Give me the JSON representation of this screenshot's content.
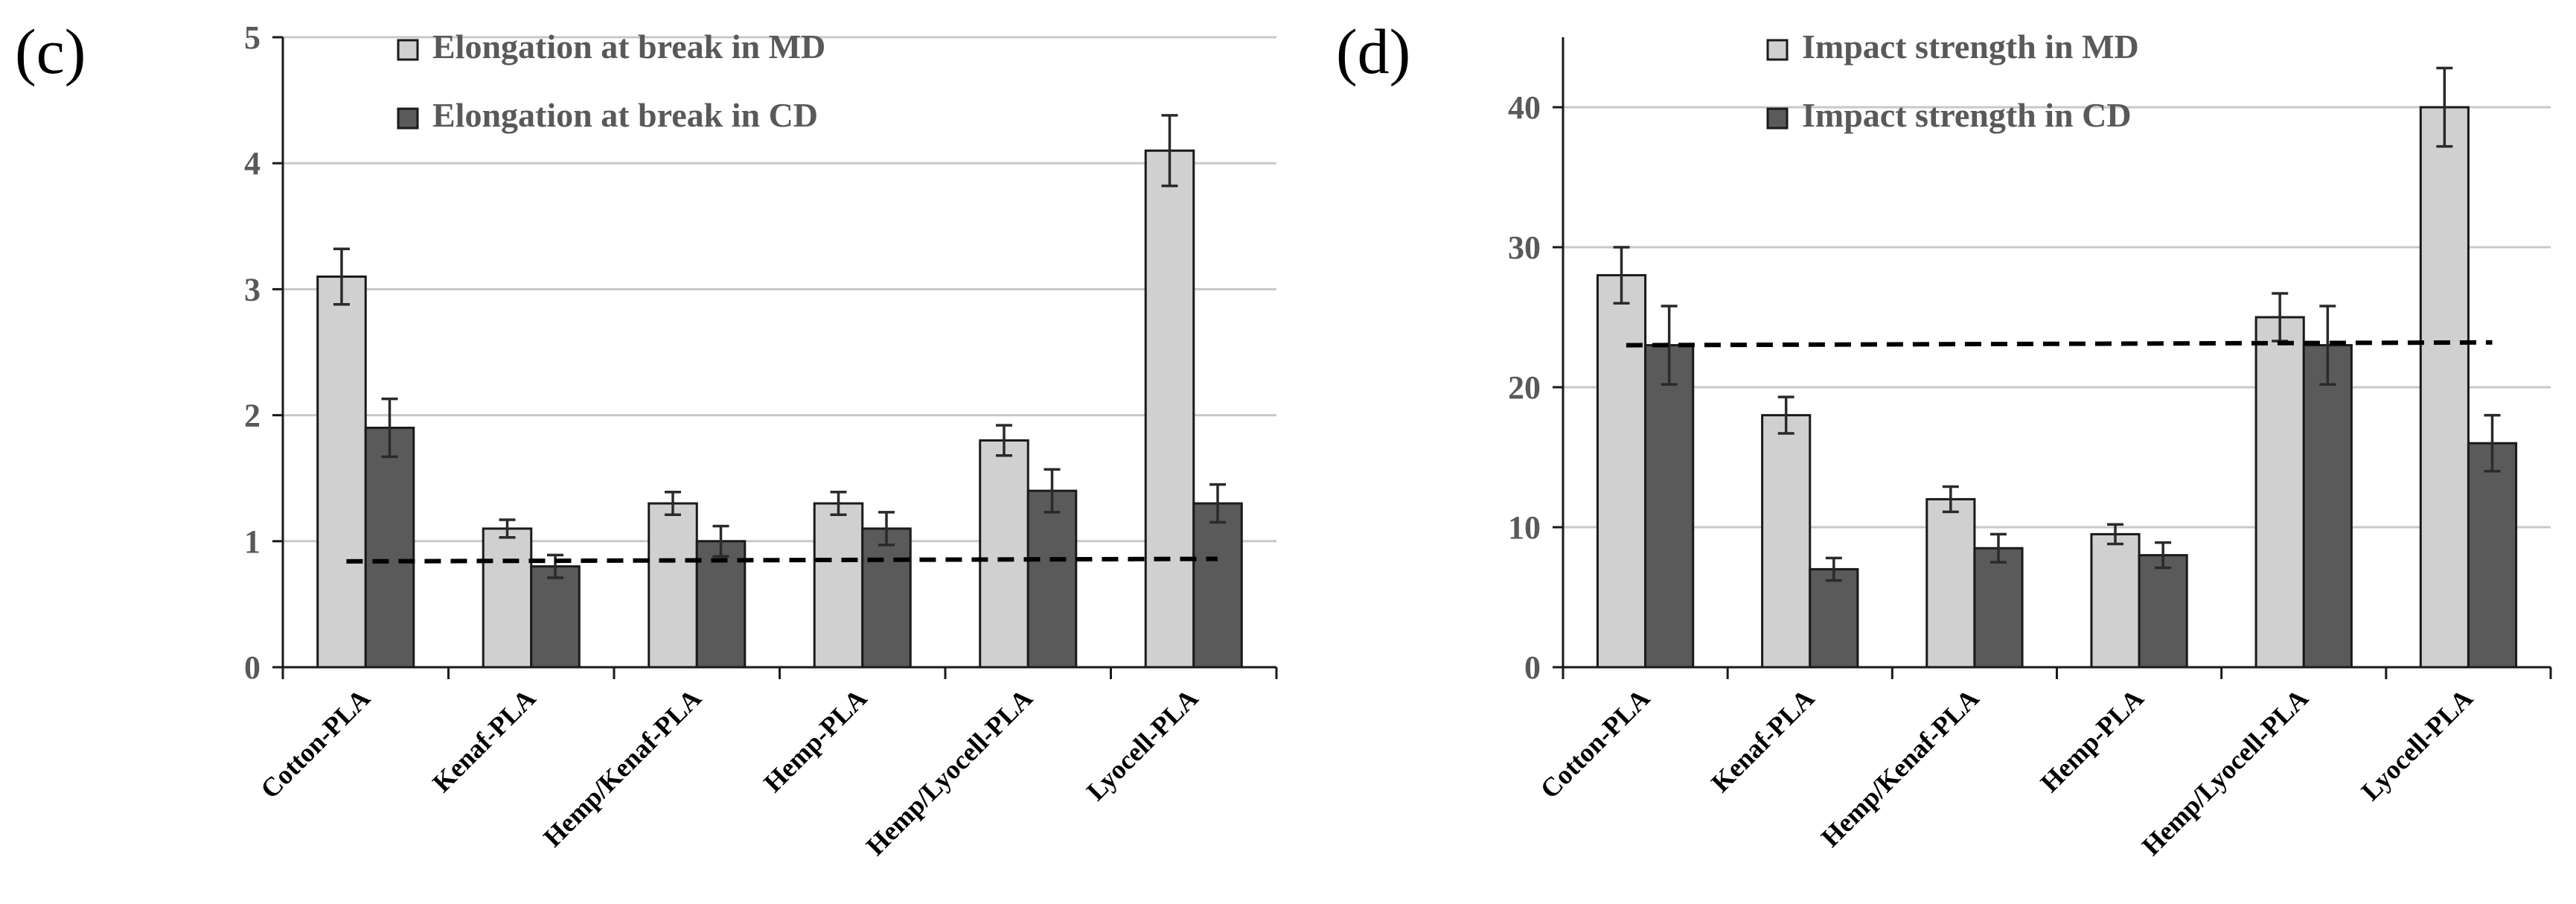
{
  "colors": {
    "md": "#d0d0d0",
    "cd": "#5a5a5a",
    "bar_stroke": "#1a1a1a",
    "grid": "#c8c8c8",
    "axis": "#1a1a1a",
    "error": "#2a2a2a",
    "dashed": "#000000"
  },
  "chart_data": [
    {
      "type": "bar",
      "panel_label": "(c)",
      "categories": [
        "Cotton-PLA",
        "Kenaf-PLA",
        "Hemp/Kenaf-PLA",
        "Hemp-PLA",
        "Hemp/Lyocell-PLA",
        "Lyocell-PLA"
      ],
      "series": [
        {
          "name": "Elongation at break in MD",
          "key": "md",
          "values": [
            3.1,
            1.1,
            1.3,
            1.3,
            1.8,
            4.1
          ],
          "errors": [
            0.22,
            0.07,
            0.09,
            0.09,
            0.12,
            0.28
          ]
        },
        {
          "name": "Elongation at break in CD",
          "key": "cd",
          "values": [
            1.9,
            0.8,
            1.0,
            1.1,
            1.4,
            1.3
          ],
          "errors": [
            0.23,
            0.09,
            0.12,
            0.13,
            0.17,
            0.15
          ]
        }
      ],
      "yticks": [
        0,
        1,
        2,
        3,
        4,
        5
      ],
      "ylim": [
        0,
        5
      ],
      "reference_line": {
        "style": "dashed",
        "from": 0.84,
        "to": 0.86
      },
      "grid": true,
      "legend": "top-left",
      "title": "",
      "xlabel": "",
      "ylabel": ""
    },
    {
      "type": "bar",
      "panel_label": "(d)",
      "categories": [
        "Cotton-PLA",
        "Kenaf-PLA",
        "Hemp/Kenaf-PLA",
        "Hemp-PLA",
        "Hemp/Lyocell-PLA",
        "Lyocell-PLA"
      ],
      "series": [
        {
          "name": "Impact strength in MD",
          "key": "md",
          "values": [
            28,
            18,
            12,
            9.5,
            25,
            40
          ],
          "errors": [
            2.0,
            1.3,
            0.9,
            0.7,
            1.7,
            2.8
          ]
        },
        {
          "name": "Impact strength in CD",
          "key": "cd",
          "values": [
            23,
            7,
            8.5,
            8,
            23,
            16
          ],
          "errors": [
            2.8,
            0.8,
            1.0,
            0.9,
            2.8,
            2.0
          ]
        }
      ],
      "yticks": [
        0,
        10,
        20,
        30,
        40
      ],
      "ylim": [
        0,
        45
      ],
      "reference_line": {
        "style": "dashed",
        "from": 23,
        "to": 23.2
      },
      "grid": true,
      "legend": "top-left",
      "title": "",
      "xlabel": "",
      "ylabel": ""
    }
  ]
}
